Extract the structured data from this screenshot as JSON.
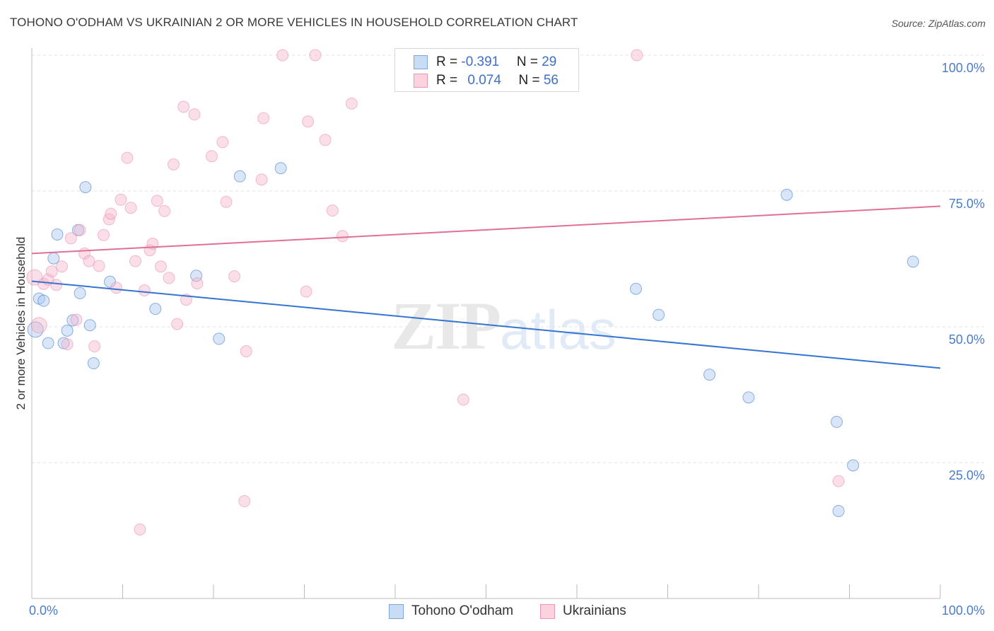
{
  "title": "TOHONO O'ODHAM VS UKRAINIAN 2 OR MORE VEHICLES IN HOUSEHOLD CORRELATION CHART",
  "source": "Source: ZipAtlas.com",
  "watermark": {
    "zip": "ZIP",
    "atlas": "atlas"
  },
  "legend_top": {
    "rows": [
      {
        "r_label": "R = ",
        "r_value": "-0.391",
        "n_label": "N = ",
        "n_value": "29",
        "color": "#a9c7f0"
      },
      {
        "r_label": "R = ",
        "r_value": "0.074",
        "n_label": "N = ",
        "n_value": "56",
        "color": "#f5b8cc"
      }
    ]
  },
  "colors": {
    "blue_fill": "#a9c7f0",
    "blue_line": "#3674d1",
    "pink_fill": "#f5b8cc",
    "pink_line": "#e0709a",
    "tick_label": "#4a7cc9",
    "grid": "#e3e3e3"
  },
  "chart_data": {
    "type": "scatter",
    "title": "TOHONO O'ODHAM VS UKRAINIAN 2 OR MORE VEHICLES IN HOUSEHOLD CORRELATION CHART",
    "xlabel": "",
    "ylabel": "2 or more Vehicles in Household",
    "xlim": [
      0,
      100
    ],
    "ylim": [
      0,
      100
    ],
    "x_tick_labels": [
      "0.0%",
      "100.0%"
    ],
    "y_ticks": [
      25,
      50,
      75,
      100
    ],
    "y_tick_labels": [
      "25.0%",
      "50.0%",
      "75.0%",
      "100.0%"
    ],
    "grid": true,
    "legend": "bottom-center",
    "series": [
      {
        "name": "Tohono O'odham",
        "color": "#a9c7f0",
        "trend": {
          "x": [
            0,
            100
          ],
          "y": [
            58.4,
            42.4
          ]
        },
        "points": [
          {
            "x": 0.4,
            "y": 49.5
          },
          {
            "x": 0.8,
            "y": 55.2
          },
          {
            "x": 1.3,
            "y": 54.8
          },
          {
            "x": 1.8,
            "y": 47.0
          },
          {
            "x": 2.4,
            "y": 62.6
          },
          {
            "x": 2.8,
            "y": 67.0
          },
          {
            "x": 3.5,
            "y": 47.0
          },
          {
            "x": 3.9,
            "y": 49.3
          },
          {
            "x": 4.5,
            "y": 51.2
          },
          {
            "x": 5.1,
            "y": 67.8
          },
          {
            "x": 5.3,
            "y": 56.2
          },
          {
            "x": 5.9,
            "y": 75.7
          },
          {
            "x": 6.4,
            "y": 50.3
          },
          {
            "x": 6.8,
            "y": 43.3
          },
          {
            "x": 8.6,
            "y": 58.3
          },
          {
            "x": 13.6,
            "y": 53.3
          },
          {
            "x": 18.1,
            "y": 59.4
          },
          {
            "x": 20.6,
            "y": 47.8
          },
          {
            "x": 22.9,
            "y": 77.7
          },
          {
            "x": 27.4,
            "y": 79.2
          },
          {
            "x": 66.5,
            "y": 57.0
          },
          {
            "x": 69.0,
            "y": 52.2
          },
          {
            "x": 74.6,
            "y": 41.2
          },
          {
            "x": 78.9,
            "y": 37.0
          },
          {
            "x": 83.1,
            "y": 74.3
          },
          {
            "x": 88.6,
            "y": 32.5
          },
          {
            "x": 90.4,
            "y": 24.5
          },
          {
            "x": 88.8,
            "y": 16.1
          },
          {
            "x": 97.0,
            "y": 62.0
          }
        ]
      },
      {
        "name": "Ukrainians",
        "color": "#f5b8cc",
        "trend": {
          "x": [
            0,
            100
          ],
          "y": [
            63.5,
            72.2
          ]
        },
        "points": [
          {
            "x": 0.3,
            "y": 59.1
          },
          {
            "x": 0.8,
            "y": 50.3
          },
          {
            "x": 1.3,
            "y": 57.9
          },
          {
            "x": 1.8,
            "y": 58.7
          },
          {
            "x": 2.2,
            "y": 60.2
          },
          {
            "x": 2.7,
            "y": 57.7
          },
          {
            "x": 3.3,
            "y": 61.1
          },
          {
            "x": 3.9,
            "y": 46.8
          },
          {
            "x": 4.3,
            "y": 66.3
          },
          {
            "x": 4.9,
            "y": 51.3
          },
          {
            "x": 5.3,
            "y": 67.8
          },
          {
            "x": 5.8,
            "y": 63.5
          },
          {
            "x": 6.3,
            "y": 62.1
          },
          {
            "x": 6.9,
            "y": 46.4
          },
          {
            "x": 7.4,
            "y": 61.2
          },
          {
            "x": 7.9,
            "y": 66.9
          },
          {
            "x": 8.5,
            "y": 69.8
          },
          {
            "x": 8.7,
            "y": 70.8
          },
          {
            "x": 9.3,
            "y": 57.2
          },
          {
            "x": 9.8,
            "y": 73.4
          },
          {
            "x": 10.5,
            "y": 81.1
          },
          {
            "x": 10.9,
            "y": 71.9
          },
          {
            "x": 11.4,
            "y": 62.1
          },
          {
            "x": 11.9,
            "y": 12.7
          },
          {
            "x": 12.4,
            "y": 56.7
          },
          {
            "x": 13.0,
            "y": 64.1
          },
          {
            "x": 13.3,
            "y": 65.3
          },
          {
            "x": 13.8,
            "y": 73.2
          },
          {
            "x": 14.2,
            "y": 61.1
          },
          {
            "x": 14.6,
            "y": 71.3
          },
          {
            "x": 15.1,
            "y": 59.0
          },
          {
            "x": 15.6,
            "y": 79.9
          },
          {
            "x": 16.0,
            "y": 50.5
          },
          {
            "x": 16.7,
            "y": 90.5
          },
          {
            "x": 17.0,
            "y": 55.0
          },
          {
            "x": 17.9,
            "y": 89.1
          },
          {
            "x": 18.2,
            "y": 58.0
          },
          {
            "x": 19.8,
            "y": 81.4
          },
          {
            "x": 21.0,
            "y": 84.0
          },
          {
            "x": 21.4,
            "y": 73.0
          },
          {
            "x": 22.3,
            "y": 59.3
          },
          {
            "x": 23.4,
            "y": 17.9
          },
          {
            "x": 23.6,
            "y": 45.5
          },
          {
            "x": 25.3,
            "y": 77.1
          },
          {
            "x": 25.5,
            "y": 88.4
          },
          {
            "x": 27.6,
            "y": 100.0
          },
          {
            "x": 30.2,
            "y": 56.5
          },
          {
            "x": 30.4,
            "y": 87.8
          },
          {
            "x": 31.2,
            "y": 100.0
          },
          {
            "x": 32.3,
            "y": 84.4
          },
          {
            "x": 33.1,
            "y": 71.4
          },
          {
            "x": 34.2,
            "y": 66.7
          },
          {
            "x": 35.2,
            "y": 91.1
          },
          {
            "x": 47.5,
            "y": 36.6
          },
          {
            "x": 66.6,
            "y": 100.0
          },
          {
            "x": 88.8,
            "y": 21.6
          }
        ]
      }
    ]
  },
  "legend_bottom": [
    {
      "label": "Tohono O'odham",
      "color": "#a9c7f0"
    },
    {
      "label": "Ukrainians",
      "color": "#f5b8cc"
    }
  ]
}
